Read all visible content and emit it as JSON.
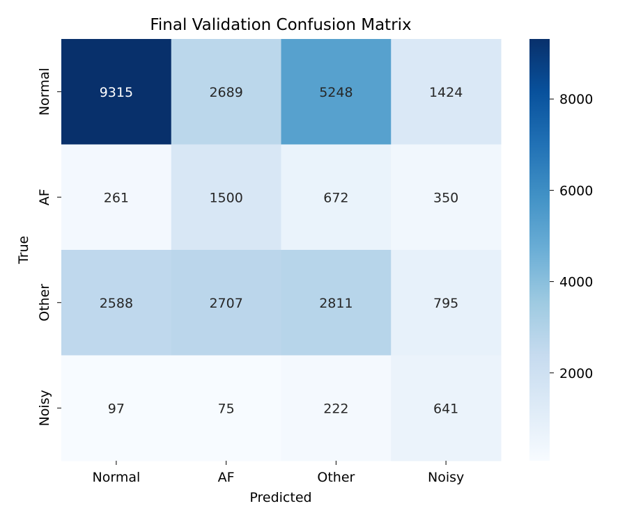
{
  "chart_data": {
    "type": "heatmap",
    "title": "Final Validation Confusion Matrix",
    "xlabel": "Predicted",
    "ylabel": "True",
    "x_categories": [
      "Normal",
      "AF",
      "Other",
      "Noisy"
    ],
    "y_categories": [
      "Normal",
      "AF",
      "Other",
      "Noisy"
    ],
    "values": [
      [
        9315,
        2689,
        5248,
        1424
      ],
      [
        261,
        1500,
        672,
        350
      ],
      [
        2588,
        2707,
        2811,
        795
      ],
      [
        97,
        75,
        222,
        641
      ]
    ],
    "colormap": "Blues",
    "vmin": 75,
    "vmax": 9315,
    "colorbar": {
      "ticks": [
        2000,
        4000,
        6000,
        8000
      ]
    },
    "annotations": true,
    "grid": false
  }
}
